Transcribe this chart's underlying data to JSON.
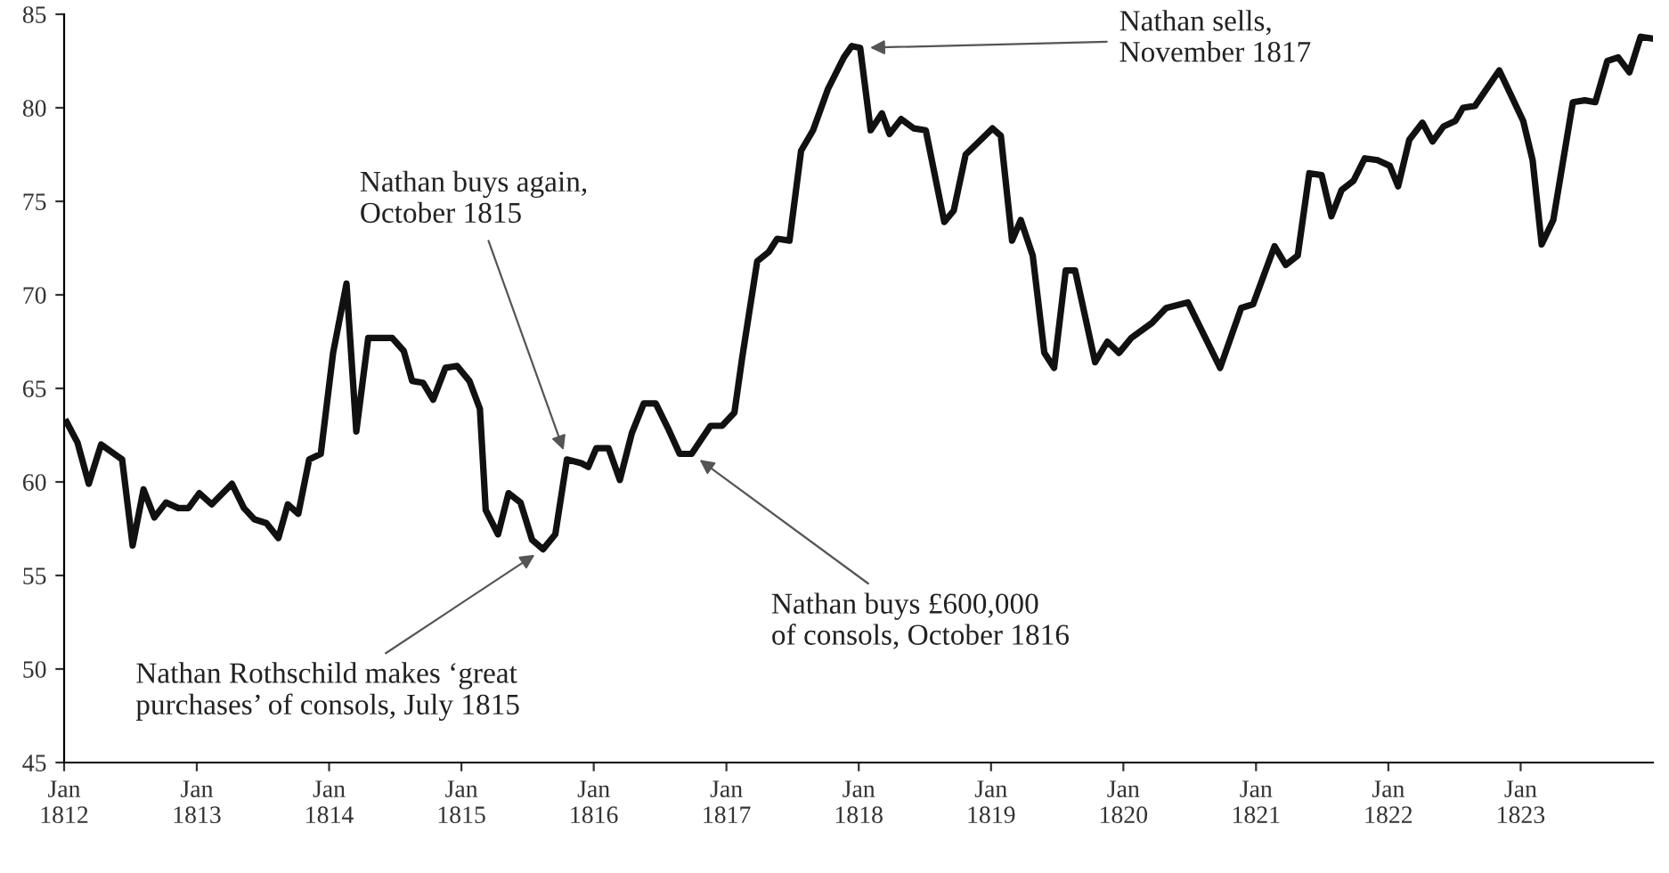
{
  "chart_data": {
    "type": "line",
    "x": [
      "1812-01-08",
      "1812-02-07",
      "1812-03-09",
      "1812-04-12",
      "1812-06-09",
      "1812-07-08",
      "1812-08-07",
      "1812-09-06",
      "1812-10-08",
      "1812-11-11",
      "1812-12-09",
      "1813-01-08",
      "1813-02-11",
      "1813-04-08",
      "1813-05-11",
      "1813-06-09",
      "1813-07-12",
      "1813-08-14",
      "1813-09-09",
      "1813-10-08",
      "1813-11-07",
      "1813-12-09",
      "1814-01-12",
      "1814-02-18",
      "1814-03-17",
      "1814-04-19",
      "1814-06-24",
      "1814-07-26",
      "1814-08-18",
      "1814-09-17",
      "1814-10-15",
      "1814-11-18",
      "1814-12-20",
      "1815-01-23",
      "1815-02-21",
      "1815-03-09",
      "1815-04-12",
      "1815-05-11",
      "1815-06-13",
      "1815-07-15",
      "1815-08-14",
      "1815-09-17",
      "1815-10-19",
      "1815-11-28",
      "1815-12-17",
      "1816-01-08",
      "1816-02-11",
      "1816-03-13",
      "1816-04-15",
      "1816-05-18",
      "1816-06-20",
      "1816-07-23",
      "1816-08-25",
      "1816-09-27",
      "1816-11-18",
      "1816-12-20",
      "1817-01-23",
      "1817-02-14",
      "1817-03-27",
      "1817-04-28",
      "1817-05-21",
      "1817-06-24",
      "1817-07-26",
      "1817-08-28",
      "1817-10-08",
      "1817-11-21",
      "1817-12-13",
      "1818-01-05",
      "1818-02-03",
      "1818-03-06",
      "1818-03-27",
      "1818-04-28",
      "1818-06-02",
      "1818-07-05",
      "1818-08-25",
      "1818-09-20",
      "1818-10-23",
      "1819-01-05",
      "1819-01-28",
      "1819-02-28",
      "1819-03-24",
      "1819-04-26",
      "1819-05-28",
      "1819-06-24",
      "1819-07-26",
      "1819-08-21",
      "1819-10-15",
      "1819-11-18",
      "1819-12-20",
      "1820-01-23",
      "1820-03-20",
      "1820-04-28",
      "1820-06-27",
      "1820-09-24",
      "1820-11-21",
      "1820-12-24",
      "1821-02-21",
      "1821-03-24",
      "1821-04-26",
      "1821-05-28",
      "1821-07-01",
      "1821-07-28",
      "1821-08-25",
      "1821-09-27",
      "1821-10-28",
      "1821-12-02",
      "1822-01-05",
      "1822-01-28",
      "1822-02-28",
      "1822-04-05",
      "1822-05-03",
      "1822-06-02",
      "1822-07-05",
      "1822-07-26",
      "1822-08-28",
      "1822-11-03",
      "1823-01-08",
      "1823-02-03",
      "1823-02-28",
      "1823-04-01",
      "1823-05-25",
      "1823-06-27",
      "1823-07-26",
      "1823-08-28",
      "1823-09-27",
      "1823-10-28",
      "1823-11-28",
      "1824-01-01"
    ],
    "values": [
      63.2,
      62.1,
      59.9,
      62.0,
      61.2,
      56.6,
      59.6,
      58.1,
      58.9,
      58.6,
      58.6,
      59.4,
      58.8,
      59.9,
      58.6,
      58.0,
      57.8,
      57.0,
      58.8,
      58.3,
      61.2,
      61.5,
      66.9,
      70.6,
      62.7,
      67.7,
      67.7,
      67.0,
      65.4,
      65.3,
      64.4,
      66.1,
      66.2,
      65.4,
      63.9,
      58.5,
      57.2,
      59.4,
      58.9,
      56.9,
      56.4,
      57.2,
      61.2,
      61.0,
      60.8,
      61.8,
      61.8,
      60.1,
      62.6,
      64.2,
      64.2,
      62.9,
      61.5,
      61.5,
      63.0,
      63.0,
      63.7,
      66.7,
      71.8,
      72.3,
      73.0,
      72.9,
      77.7,
      78.8,
      81.0,
      82.7,
      83.3,
      83.2,
      78.8,
      79.7,
      78.6,
      79.4,
      78.9,
      78.8,
      73.9,
      74.5,
      77.5,
      78.9,
      78.5,
      72.9,
      74.0,
      72.1,
      66.9,
      66.1,
      71.3,
      71.3,
      66.4,
      67.5,
      66.9,
      67.7,
      68.5,
      69.3,
      69.6,
      66.1,
      69.3,
      69.5,
      72.6,
      71.6,
      72.1,
      76.5,
      76.4,
      74.2,
      75.6,
      76.1,
      77.3,
      77.2,
      76.9,
      75.8,
      78.3,
      79.2,
      78.2,
      79.0,
      79.3,
      80.0,
      80.1,
      82.0,
      79.3,
      77.2,
      72.7,
      74.0,
      80.3,
      80.4,
      80.3,
      82.5,
      82.7,
      81.9,
      83.8,
      83.7
    ],
    "color": "#111111",
    "xlim": [
      "1812-01-01",
      "1824-01-01"
    ],
    "xticks": [
      {
        "value": "1812-01-01",
        "label": "Jan\n1812"
      },
      {
        "value": "1813-01-01",
        "label": "Jan\n1813"
      },
      {
        "value": "1814-01-01",
        "label": "Jan\n1814"
      },
      {
        "value": "1815-01-01",
        "label": "Jan\n1815"
      },
      {
        "value": "1816-01-01",
        "label": "Jan\n1816"
      },
      {
        "value": "1817-01-01",
        "label": "Jan\n1817"
      },
      {
        "value": "1818-01-01",
        "label": "Jan\n1818"
      },
      {
        "value": "1819-01-01",
        "label": "Jan\n1819"
      },
      {
        "value": "1820-01-01",
        "label": "Jan\n1820"
      },
      {
        "value": "1821-01-01",
        "label": "Jan\n1821"
      },
      {
        "value": "1822-01-01",
        "label": "Jan\n1822"
      },
      {
        "value": "1823-01-01",
        "label": "Jan\n1823"
      }
    ],
    "ylim": [
      45,
      85
    ],
    "yticks": [
      45,
      50,
      55,
      60,
      65,
      70,
      75,
      80,
      85
    ],
    "grid": false,
    "marker": "none",
    "line_style": "solid",
    "annotations": [
      {
        "text": "Nathan sells,\nNovember 1817",
        "x": "1818-01-05",
        "y": 83.2
      },
      {
        "text": "Nathan buys again,\nOctober 1815",
        "x": "1815-10-19",
        "y": 61.2
      },
      {
        "text": "Nathan Rothschild makes ‘great\npurchases’ of consols, July 1815",
        "x": "1815-08-14",
        "y": 56.4
      },
      {
        "text": "Nathan buys £600,000\nof consols, October 1816",
        "x": "1816-09-27",
        "y": 61.5
      }
    ]
  }
}
